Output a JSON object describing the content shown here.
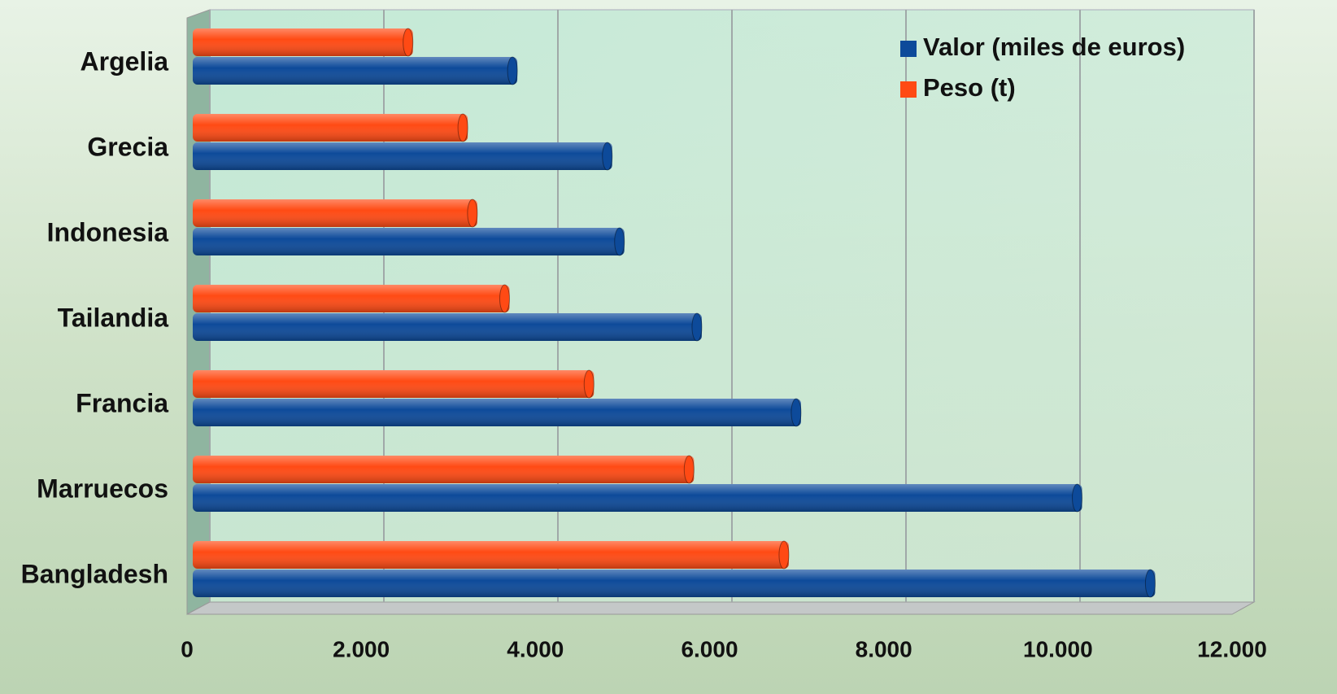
{
  "chart_data": {
    "type": "bar",
    "orientation": "horizontal",
    "categories": [
      "Argelia",
      "Grecia",
      "Indonesia",
      "Tailandia",
      "Francia",
      "Marruecos",
      "Bangladesh"
    ],
    "series": [
      {
        "name": "Valor (miles de euros)",
        "color": "#0d4a9a",
        "values": [
          3730,
          4820,
          4960,
          5850,
          6990,
          10220,
          11060
        ]
      },
      {
        "name": "Peso (t)",
        "color": "#ff4a14",
        "values": [
          2530,
          3160,
          3270,
          3640,
          4610,
          5760,
          6850
        ]
      }
    ],
    "xlim": [
      0,
      12000
    ],
    "xticks": [
      0,
      {
        "value": 2000,
        "label": "2.000"
      },
      {
        "value": 4000,
        "label": "4.000"
      },
      {
        "value": 6000,
        "label": "6.000"
      },
      {
        "value": 8000,
        "label": "8.000"
      },
      {
        "value": 10000,
        "label": "10.000"
      },
      {
        "value": 12000,
        "label": "12.000"
      }
    ],
    "grid": true,
    "legend": "top-right"
  }
}
